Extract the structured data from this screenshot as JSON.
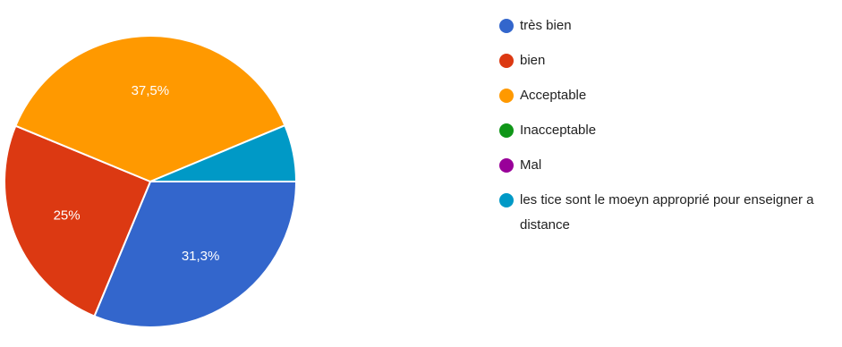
{
  "chart_data": {
    "type": "pie",
    "categories": [
      "très bien",
      "bien",
      "Acceptable",
      "Inacceptable",
      "Mal",
      "les tice sont le moeyn approprié pour enseigner a distance"
    ],
    "values": [
      31.3,
      25,
      37.5,
      0,
      0,
      6.3
    ],
    "data_labels": [
      "31,3%",
      "25%",
      "37,5%",
      "",
      "",
      ""
    ],
    "colors": [
      "#3366cc",
      "#dc3912",
      "#ff9900",
      "#109618",
      "#990099",
      "#0099c6"
    ],
    "legend_position": "right"
  }
}
